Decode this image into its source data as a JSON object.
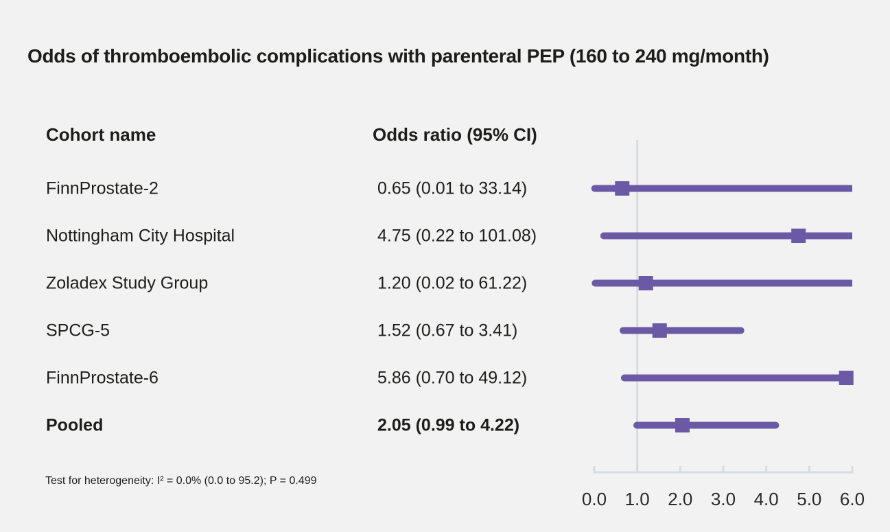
{
  "chart_data": {
    "type": "forest",
    "title": "Odds of thromboembolic complications with parenteral PEP (160 to 240 mg/month)",
    "columns": [
      "Cohort name",
      "Odds ratio (95% CI)"
    ],
    "rows": [
      {
        "name": "FinnProstate-2",
        "label": "0.65 (0.01 to 33.14)",
        "or": 0.65,
        "lo": 0.01,
        "hi": 33.14,
        "pooled": false
      },
      {
        "name": "Nottingham City Hospital",
        "label": "4.75 (0.22 to 101.08)",
        "or": 4.75,
        "lo": 0.22,
        "hi": 101.08,
        "pooled": false
      },
      {
        "name": "Zoladex Study Group",
        "label": "1.20 (0.02 to 61.22)",
        "or": 1.2,
        "lo": 0.02,
        "hi": 61.22,
        "pooled": false
      },
      {
        "name": "SPCG-5",
        "label": "1.52 (0.67 to 3.41)",
        "or": 1.52,
        "lo": 0.67,
        "hi": 3.41,
        "pooled": false
      },
      {
        "name": "FinnProstate-6",
        "label": "5.86 (0.70 to 49.12)",
        "or": 5.86,
        "lo": 0.7,
        "hi": 49.12,
        "pooled": false
      },
      {
        "name": "Pooled",
        "label": "2.05 (0.99 to 4.22)",
        "or": 2.05,
        "lo": 0.99,
        "hi": 4.22,
        "pooled": true
      }
    ],
    "xticks": [
      "0.0",
      "1.0",
      "2.0",
      "3.0",
      "4.0",
      "5.0",
      "6.0"
    ],
    "xlim": [
      0,
      6
    ],
    "reference_line": 1.0,
    "footnote": "Test for heterogeneity: I² = 0.0% (0.0 to 95.2); P = 0.499",
    "legend_position": "none",
    "grid": false,
    "colors": {
      "marker": "#6c59a6",
      "axis": "#d7dbe2",
      "background": "#f2f2f2",
      "text": "#1d1d1b"
    }
  }
}
